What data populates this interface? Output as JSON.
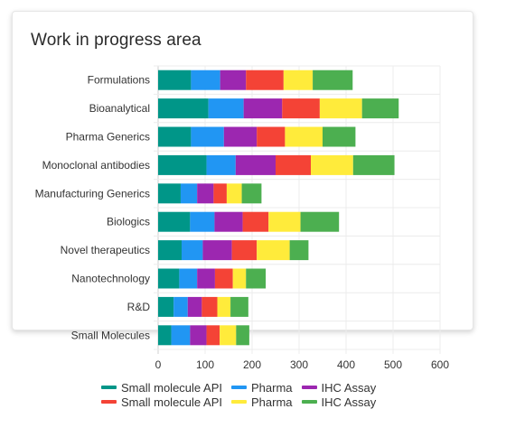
{
  "card": {
    "title": "Work in progress area"
  },
  "chart_data": {
    "type": "bar",
    "orientation": "horizontal",
    "stacked": true,
    "categories": [
      "Formulations",
      "Bioanalytical",
      "Pharma Generics",
      "Monoclonal antibodies",
      "Manufacturing Generics",
      "Biologics",
      "Novel therapeutics",
      "Nanotechnology",
      "R&D",
      "Small Molecules"
    ],
    "series": [
      {
        "name": "Small molecule API",
        "color": "#009688",
        "values": [
          70,
          107,
          70,
          103,
          48,
          68,
          50,
          45,
          33,
          28
        ]
      },
      {
        "name": "Pharma",
        "color": "#2196F3",
        "values": [
          62,
          75,
          70,
          62,
          35,
          52,
          45,
          38,
          30,
          40
        ]
      },
      {
        "name": "IHC Assay",
        "color": "#9C27B0",
        "values": [
          55,
          82,
          70,
          85,
          35,
          60,
          62,
          38,
          30,
          35
        ]
      },
      {
        "name": "Small molecule API",
        "color": "#F44336",
        "values": [
          80,
          80,
          60,
          75,
          28,
          55,
          53,
          38,
          33,
          28
        ]
      },
      {
        "name": "Pharma",
        "color": "#FFEB3B",
        "values": [
          62,
          90,
          80,
          90,
          32,
          68,
          70,
          28,
          28,
          35
        ]
      },
      {
        "name": "IHC Assay",
        "color": "#4CAF50",
        "values": [
          85,
          78,
          70,
          88,
          42,
          82,
          40,
          42,
          38,
          28
        ]
      }
    ],
    "xlim": [
      0,
      600
    ],
    "xticks": [
      0,
      100,
      200,
      300,
      400,
      500,
      600
    ],
    "grid": true,
    "legend_position": "bottom"
  }
}
